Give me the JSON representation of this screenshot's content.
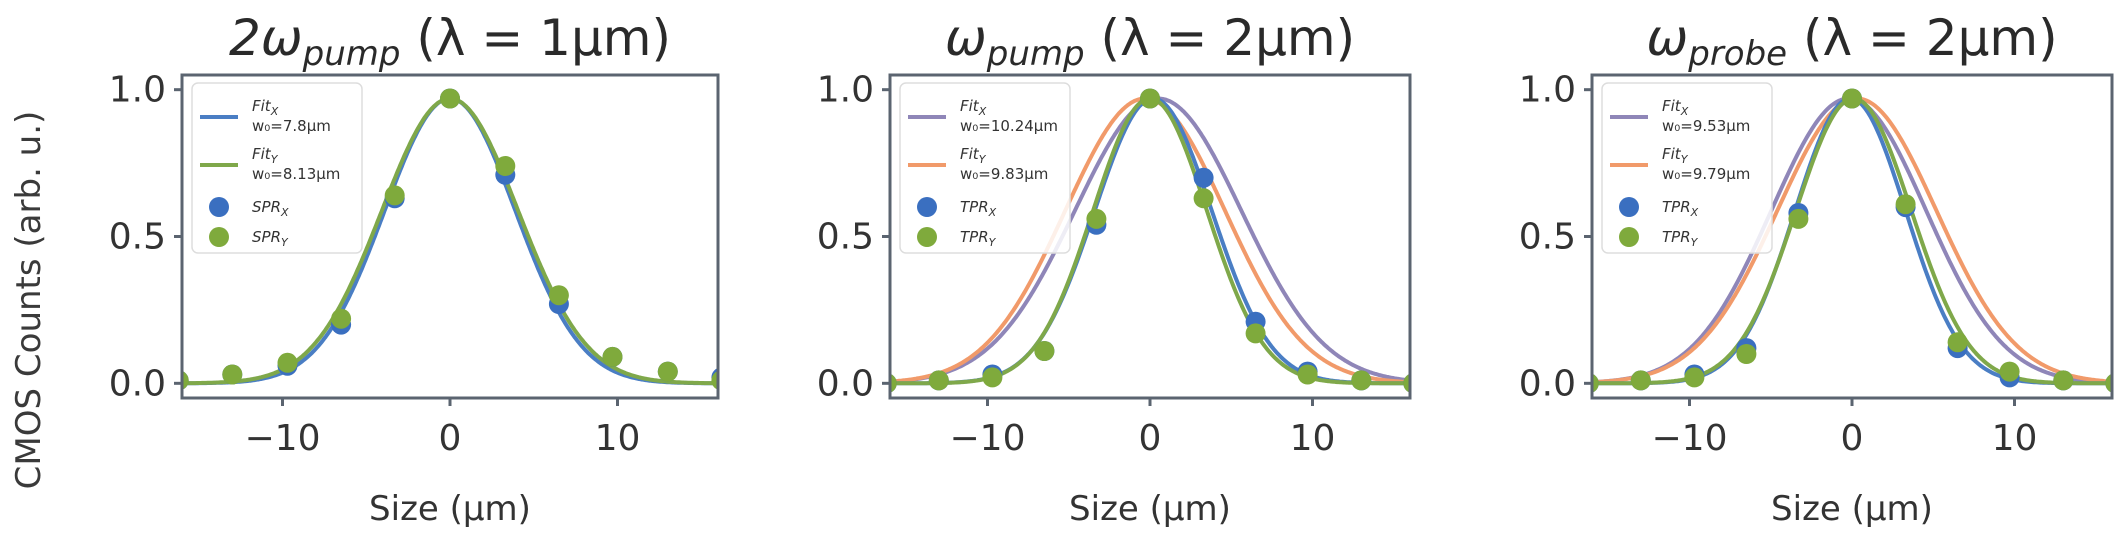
{
  "figure": {
    "ylabel": "CMOS Counts (arb. u.)"
  },
  "chart_data": [
    {
      "type": "line",
      "title": "2ωpump (λ = 1µm)",
      "title_parts": {
        "prefix": "2ω",
        "sub": "pump",
        "suffix": " (λ = 1µm)"
      },
      "xlabel": "Size (µm)",
      "ylabel": "CMOS Counts (arb. u.)",
      "xlim": [
        -16,
        16
      ],
      "ylim": [
        -0.05,
        1.05
      ],
      "xticks": [
        -10,
        0,
        10
      ],
      "xtick_labels": [
        "−10",
        "0",
        "10"
      ],
      "yticks": [
        0.0,
        0.5,
        1.0
      ],
      "ytick_labels": [
        "0.0",
        "0.5",
        "1.0"
      ],
      "grid": false,
      "legend": "top-left",
      "series": [
        {
          "kind": "line",
          "color": "#4a7ec4",
          "label": "Fit",
          "sub": "X",
          "param": "w₀=7.8µm",
          "amplitude": 0.97,
          "w0": 7.8,
          "offset": 0.0
        },
        {
          "kind": "line",
          "color": "#7fa84a",
          "label": "Fit",
          "sub": "Y",
          "param": "w₀=8.13µm",
          "amplitude": 0.97,
          "w0": 8.13,
          "offset": 0.0
        },
        {
          "kind": "scatter",
          "color": "#3a6fc0",
          "label": "SPR",
          "sub": "X",
          "points": [
            [
              -16.2,
              0.01
            ],
            [
              -13,
              0.03
            ],
            [
              -9.7,
              0.06
            ],
            [
              -6.5,
              0.2
            ],
            [
              -3.3,
              0.63
            ],
            [
              0,
              0.97
            ],
            [
              3.3,
              0.71
            ],
            [
              6.5,
              0.27
            ],
            [
              9.7,
              0.09
            ],
            [
              13,
              0.04
            ],
            [
              16.2,
              0.02
            ]
          ]
        },
        {
          "kind": "scatter",
          "color": "#7faa3c",
          "label": "SPR",
          "sub": "Y",
          "points": [
            [
              -16.2,
              0.01
            ],
            [
              -13,
              0.03
            ],
            [
              -9.7,
              0.07
            ],
            [
              -6.5,
              0.22
            ],
            [
              -3.3,
              0.64
            ],
            [
              0,
              0.97
            ],
            [
              3.3,
              0.74
            ],
            [
              6.5,
              0.3
            ],
            [
              9.7,
              0.09
            ],
            [
              13,
              0.04
            ],
            [
              16.2,
              0.01
            ]
          ]
        }
      ]
    },
    {
      "type": "line",
      "title": "ωpump (λ = 2µm)",
      "title_parts": {
        "prefix": "ω",
        "sub": "pump",
        "suffix": " (λ = 2µm)"
      },
      "xlabel": "Size (µm)",
      "ylabel": "",
      "xlim": [
        -16,
        16
      ],
      "ylim": [
        -0.05,
        1.05
      ],
      "xticks": [
        -10,
        0,
        10
      ],
      "xtick_labels": [
        "−10",
        "0",
        "10"
      ],
      "yticks": [
        0.0,
        0.5,
        1.0
      ],
      "ytick_labels": [
        "0.0",
        "0.5",
        "1.0"
      ],
      "grid": false,
      "legend": "top-left",
      "series": [
        {
          "kind": "line",
          "color": "#8f86b8",
          "label": "Fit",
          "sub": "X",
          "param": "w₀=10.24µm",
          "amplitude": 0.97,
          "w0": 10.24,
          "offset": 0.5,
          "fitline": true
        },
        {
          "kind": "line",
          "color": "#f19a6a",
          "label": "Fit",
          "sub": "Y",
          "param": "w₀=9.83µm",
          "amplitude": 0.97,
          "w0": 9.83,
          "offset": -0.3,
          "fitline": true
        },
        {
          "kind": "line",
          "color": "#4a7ec4",
          "label": "",
          "amplitude": 0.97,
          "w0": 7.2,
          "offset": 0.2,
          "hidden_legend": true
        },
        {
          "kind": "line",
          "color": "#7fa84a",
          "label": "",
          "amplitude": 0.97,
          "w0": 7.0,
          "offset": 0.0,
          "hidden_legend": true
        },
        {
          "kind": "scatter",
          "color": "#3a6fc0",
          "label": "TPR",
          "sub": "X",
          "points": [
            [
              -16.2,
              0.0
            ],
            [
              -13,
              0.01
            ],
            [
              -9.7,
              0.03
            ],
            [
              -6.5,
              0.11
            ],
            [
              -3.3,
              0.54
            ],
            [
              0,
              0.97
            ],
            [
              3.3,
              0.7
            ],
            [
              6.5,
              0.21
            ],
            [
              9.7,
              0.04
            ],
            [
              13,
              0.01
            ],
            [
              16.2,
              0.0
            ]
          ]
        },
        {
          "kind": "scatter",
          "color": "#7faa3c",
          "label": "TPR",
          "sub": "Y",
          "points": [
            [
              -16.2,
              0.0
            ],
            [
              -13,
              0.01
            ],
            [
              -9.7,
              0.02
            ],
            [
              -6.5,
              0.11
            ],
            [
              -3.3,
              0.56
            ],
            [
              0,
              0.97
            ],
            [
              3.3,
              0.63
            ],
            [
              6.5,
              0.17
            ],
            [
              9.7,
              0.03
            ],
            [
              13,
              0.01
            ],
            [
              16.2,
              0.0
            ]
          ]
        }
      ]
    },
    {
      "type": "line",
      "title": "ωprobe (λ = 2µm)",
      "title_parts": {
        "prefix": "ω",
        "sub": "probe",
        "suffix": " (λ = 2µm)"
      },
      "xlabel": "Size (µm)",
      "ylabel": "",
      "xlim": [
        -16,
        16
      ],
      "ylim": [
        -0.05,
        1.05
      ],
      "xticks": [
        -10,
        0,
        10
      ],
      "xtick_labels": [
        "−10",
        "0",
        "10"
      ],
      "yticks": [
        0.0,
        0.5,
        1.0
      ],
      "ytick_labels": [
        "0.0",
        "0.5",
        "1.0"
      ],
      "grid": false,
      "legend": "top-left",
      "series": [
        {
          "kind": "line",
          "color": "#8f86b8",
          "label": "Fit",
          "sub": "X",
          "param": "w₀=9.53µm",
          "amplitude": 0.97,
          "w0": 9.53,
          "offset": -0.2,
          "fitline": true
        },
        {
          "kind": "line",
          "color": "#f19a6a",
          "label": "Fit",
          "sub": "Y",
          "param": "w₀=9.79µm",
          "amplitude": 0.97,
          "w0": 9.79,
          "offset": 0.3,
          "fitline": true
        },
        {
          "kind": "line",
          "color": "#4a7ec4",
          "label": "",
          "amplitude": 0.97,
          "w0": 6.8,
          "offset": -0.1,
          "hidden_legend": true
        },
        {
          "kind": "line",
          "color": "#7fa84a",
          "label": "",
          "amplitude": 0.97,
          "w0": 7.1,
          "offset": 0.1,
          "hidden_legend": true
        },
        {
          "kind": "scatter",
          "color": "#3a6fc0",
          "label": "TPR",
          "sub": "X",
          "points": [
            [
              -16.2,
              0.0
            ],
            [
              -13,
              0.01
            ],
            [
              -9.7,
              0.03
            ],
            [
              -6.5,
              0.12
            ],
            [
              -3.3,
              0.58
            ],
            [
              0,
              0.97
            ],
            [
              3.3,
              0.6
            ],
            [
              6.5,
              0.12
            ],
            [
              9.7,
              0.02
            ],
            [
              13,
              0.01
            ],
            [
              16.2,
              0.0
            ]
          ]
        },
        {
          "kind": "scatter",
          "color": "#7faa3c",
          "label": "TPR",
          "sub": "Y",
          "points": [
            [
              -16.2,
              0.0
            ],
            [
              -13,
              0.01
            ],
            [
              -9.7,
              0.02
            ],
            [
              -6.5,
              0.1
            ],
            [
              -3.3,
              0.56
            ],
            [
              0,
              0.97
            ],
            [
              3.3,
              0.61
            ],
            [
              6.5,
              0.14
            ],
            [
              9.7,
              0.04
            ],
            [
              13,
              0.01
            ],
            [
              16.2,
              0.0
            ]
          ]
        }
      ]
    }
  ]
}
